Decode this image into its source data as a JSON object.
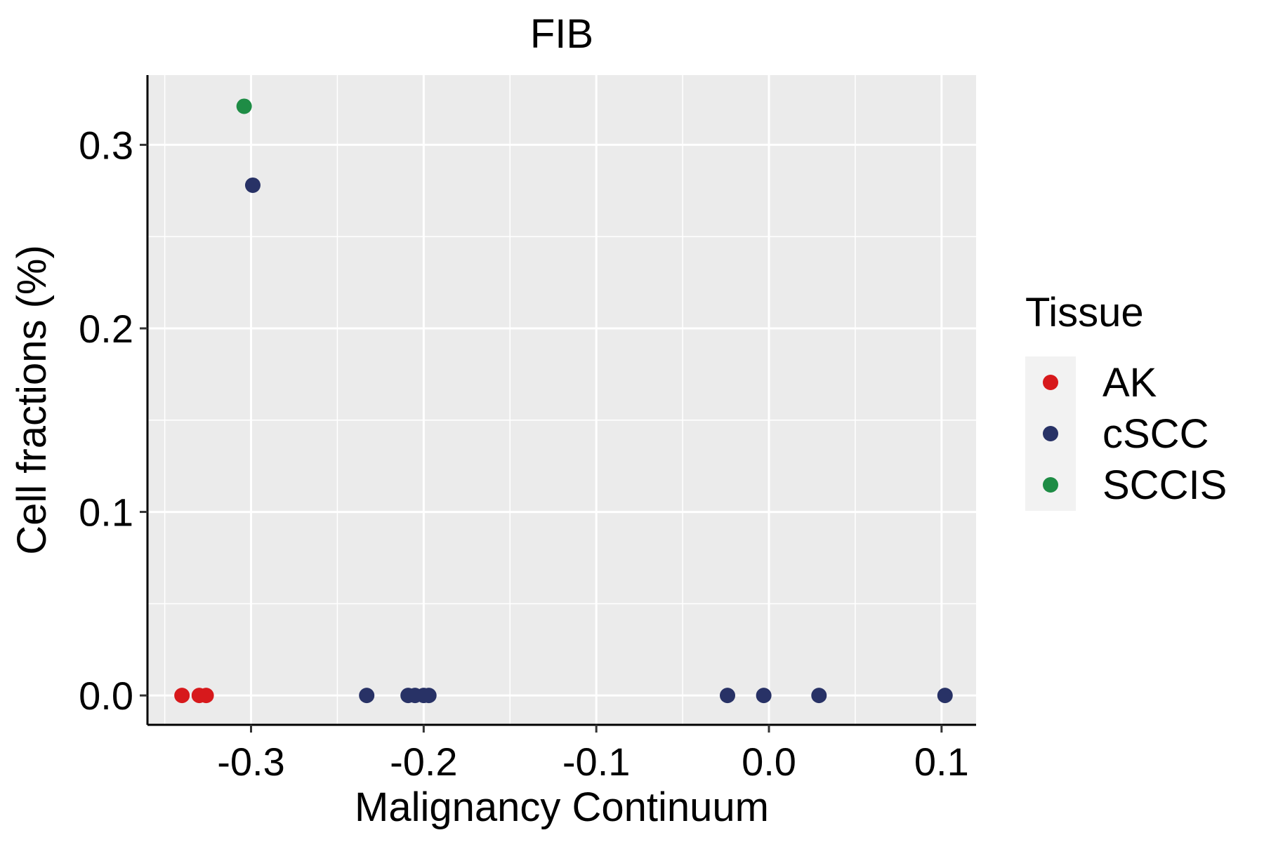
{
  "chart_data": {
    "type": "scatter",
    "title": "FIB",
    "xlabel": "Malignancy Continuum",
    "ylabel": "Cell fractions (%)",
    "xlim": [
      -0.36,
      0.12
    ],
    "ylim": [
      -0.016,
      0.338
    ],
    "x_ticks": [
      -0.3,
      -0.2,
      -0.1,
      0.0,
      0.1
    ],
    "x_tick_labels": [
      "-0.3",
      "-0.2",
      "-0.1",
      "0.0",
      "0.1"
    ],
    "y_ticks": [
      0.0,
      0.1,
      0.2,
      0.3
    ],
    "y_tick_labels": [
      "0.0",
      "0.1",
      "0.2",
      "0.3"
    ],
    "grid": true,
    "legend": {
      "title": "Tissue",
      "placement": "right"
    },
    "series": [
      {
        "name": "AK",
        "color": "#d7191c",
        "points": [
          {
            "x": -0.34,
            "y": 0.0
          },
          {
            "x": -0.33,
            "y": 0.0
          },
          {
            "x": -0.326,
            "y": 0.0
          }
        ]
      },
      {
        "name": "cSCC",
        "color": "#283266",
        "points": [
          {
            "x": -0.299,
            "y": 0.278
          },
          {
            "x": -0.233,
            "y": 0.0
          },
          {
            "x": -0.209,
            "y": 0.0
          },
          {
            "x": -0.205,
            "y": 0.0
          },
          {
            "x": -0.2,
            "y": 0.0
          },
          {
            "x": -0.197,
            "y": 0.0
          },
          {
            "x": -0.024,
            "y": 0.0
          },
          {
            "x": -0.003,
            "y": 0.0
          },
          {
            "x": 0.029,
            "y": 0.0
          },
          {
            "x": 0.102,
            "y": 0.0
          }
        ]
      },
      {
        "name": "SCCIS",
        "color": "#1e8c45",
        "points": [
          {
            "x": -0.304,
            "y": 0.321
          }
        ]
      }
    ]
  }
}
